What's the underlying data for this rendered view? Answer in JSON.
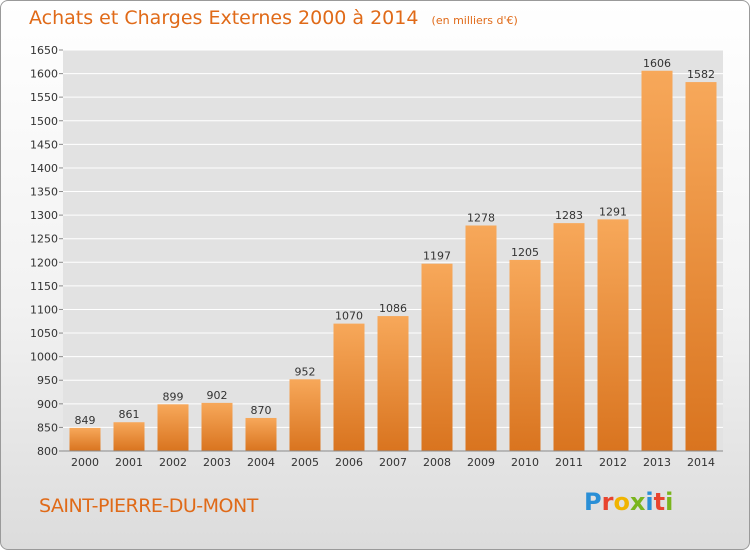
{
  "chart_data": {
    "type": "bar",
    "title": "Achats et Charges Externes 2000 à 2014",
    "unit": "(en milliers d'€)",
    "categories": [
      "2000",
      "2001",
      "2002",
      "2003",
      "2004",
      "2005",
      "2006",
      "2007",
      "2008",
      "2009",
      "2010",
      "2011",
      "2012",
      "2013",
      "2014"
    ],
    "values": [
      849,
      861,
      899,
      902,
      870,
      952,
      1070,
      1086,
      1197,
      1278,
      1205,
      1283,
      1291,
      1606,
      1582
    ],
    "ylim": [
      800,
      1650
    ],
    "yticks": [
      800,
      850,
      900,
      950,
      1000,
      1050,
      1100,
      1150,
      1200,
      1250,
      1300,
      1350,
      1400,
      1450,
      1500,
      1550,
      1600,
      1650
    ],
    "grid": true,
    "bar_color_light": "#f7a85a",
    "bar_color_dark": "#d9741f"
  },
  "footer": {
    "commune": "SAINT-PIERRE-DU-MONT",
    "logo_letters": [
      {
        "ch": "P",
        "color": "#2a8fd6"
      },
      {
        "ch": "r",
        "color": "#e8442e"
      },
      {
        "ch": "o",
        "color": "#f0b400"
      },
      {
        "ch": "x",
        "color": "#7ab51d"
      },
      {
        "ch": "i",
        "color": "#2a8fd6"
      },
      {
        "ch": "t",
        "color": "#e8442e"
      },
      {
        "ch": "i",
        "color": "#7ab51d"
      }
    ]
  },
  "colors": {
    "accent": "#e06a18",
    "grid": "#ffffff",
    "plot_bg": "#e2e2e2"
  }
}
